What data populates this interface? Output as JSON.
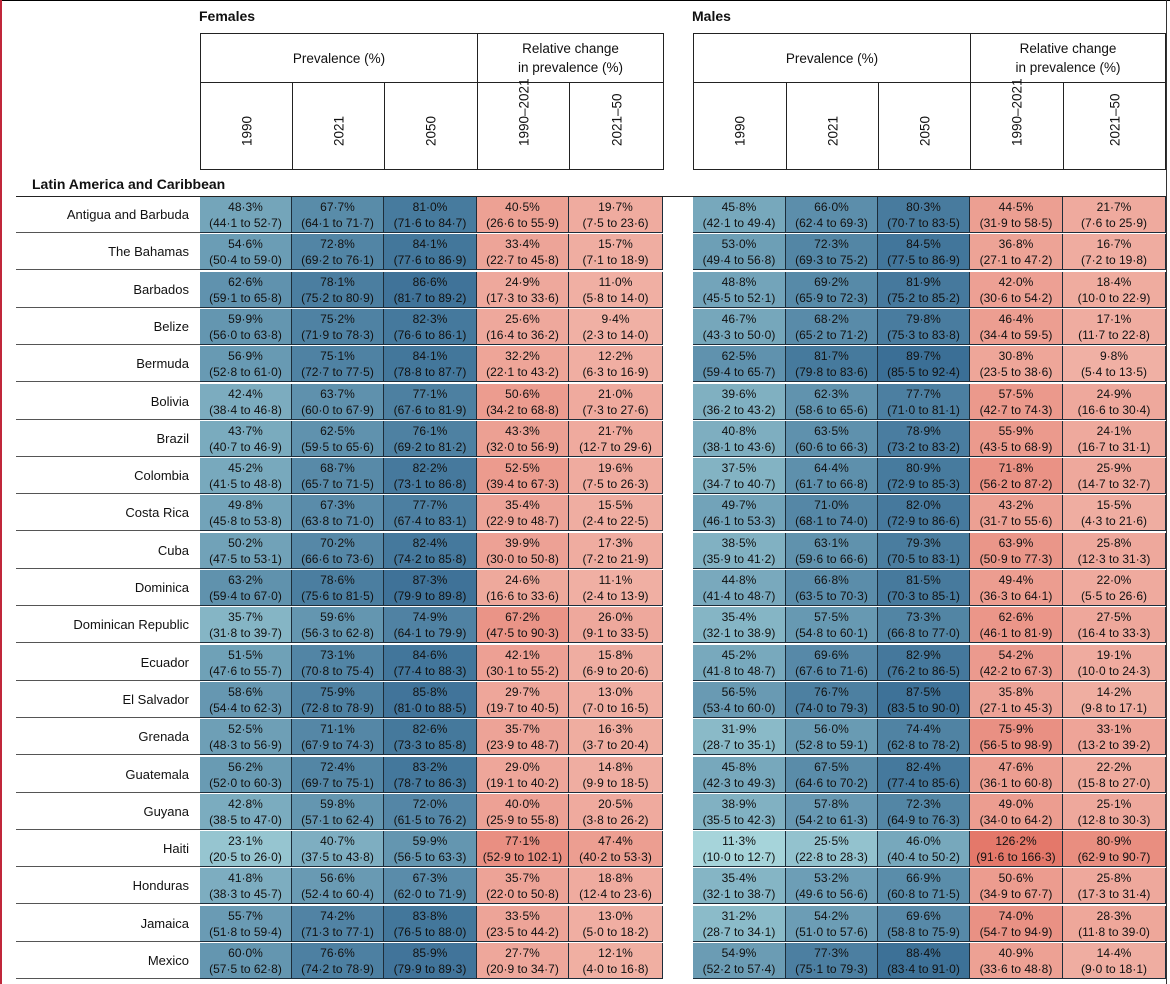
{
  "sexes": [
    "Females",
    "Males"
  ],
  "groups": {
    "prevalence": "Prevalence (%)",
    "relative_1": "Relative change",
    "relative_2": "in prevalence (%)"
  },
  "years": [
    "1990",
    "2021",
    "2050",
    "1990–2021",
    "2021–50"
  ],
  "region": "Latin America and Caribbean",
  "colors": {
    "blue_low": "#a8d6db",
    "blue_high": "#3b6f96",
    "red_low": "#f0b0a4",
    "red_high": "#e4786a"
  },
  "rows": [
    {
      "name": "Antigua and Barbuda",
      "f": [
        [
          "48·3%",
          "(44·1 to 52·7)"
        ],
        [
          "67·7%",
          "(64·1 to 71·7)"
        ],
        [
          "81·0%",
          "(71·6 to 84·7)"
        ],
        [
          "40·5%",
          "(26·6 to 55·9)"
        ],
        [
          "19·7%",
          "(7·5 to 23·6)"
        ]
      ],
      "m": [
        [
          "45·8%",
          "(42·1 to 49·4)"
        ],
        [
          "66·0%",
          "(62·4 to 69·3)"
        ],
        [
          "80·3%",
          "(70·7 to 83·5)"
        ],
        [
          "44·5%",
          "(31·9 to 58·5)"
        ],
        [
          "21·7%",
          "(7·6 to 25·9)"
        ]
      ]
    },
    {
      "name": "The Bahamas",
      "f": [
        [
          "54·6%",
          "(50·4 to 59·0)"
        ],
        [
          "72·8%",
          "(69·2 to 76·1)"
        ],
        [
          "84·1%",
          "(77·6 to 86·9)"
        ],
        [
          "33·4%",
          "(22·7 to 45·8)"
        ],
        [
          "15·7%",
          "(7·1 to 18·9)"
        ]
      ],
      "m": [
        [
          "53·0%",
          "(49·4 to 56·8)"
        ],
        [
          "72·3%",
          "(69·3 to 75·2)"
        ],
        [
          "84·5%",
          "(77·5 to 86·9)"
        ],
        [
          "36·8%",
          "(27·1 to 47·2)"
        ],
        [
          "16·7%",
          "(7·2 to 19·8)"
        ]
      ]
    },
    {
      "name": "Barbados",
      "f": [
        [
          "62·6%",
          "(59·1 to 65·8)"
        ],
        [
          "78·1%",
          "(75·2 to 80·9)"
        ],
        [
          "86·6%",
          "(81·7 to 89·2)"
        ],
        [
          "24·9%",
          "(17·3 to 33·6)"
        ],
        [
          "11·0%",
          "(5·8 to 14·0)"
        ]
      ],
      "m": [
        [
          "48·8%",
          "(45·5 to 52·1)"
        ],
        [
          "69·2%",
          "(65·9 to 72·3)"
        ],
        [
          "81·9%",
          "(75·2 to 85·2)"
        ],
        [
          "42·0%",
          "(30·6 to 54·2)"
        ],
        [
          "18·4%",
          "(10·0 to 22·9)"
        ]
      ]
    },
    {
      "name": "Belize",
      "f": [
        [
          "59·9%",
          "(56·0 to 63·8)"
        ],
        [
          "75·2%",
          "(71·9 to 78·3)"
        ],
        [
          "82·3%",
          "(76·6 to 86·1)"
        ],
        [
          "25·6%",
          "(16·4 to 36·2)"
        ],
        [
          "9·4%",
          "(2·3 to 14·0)"
        ]
      ],
      "m": [
        [
          "46·7%",
          "(43·3 to 50·0)"
        ],
        [
          "68·2%",
          "(65·2 to 71·2)"
        ],
        [
          "79·8%",
          "(75·3 to 83·8)"
        ],
        [
          "46·4%",
          "(34·4 to 59·5)"
        ],
        [
          "17·1%",
          "(11·7 to 22·8)"
        ]
      ]
    },
    {
      "name": "Bermuda",
      "f": [
        [
          "56·9%",
          "(52·8 to 61·0)"
        ],
        [
          "75·1%",
          "(72·7 to 77·5)"
        ],
        [
          "84·1%",
          "(78·8 to 87·7)"
        ],
        [
          "32·2%",
          "(22·1 to 43·2)"
        ],
        [
          "12·2%",
          "(6·3 to 16·9)"
        ]
      ],
      "m": [
        [
          "62·5%",
          "(59·4 to 65·7)"
        ],
        [
          "81·7%",
          "(79·8 to 83·6)"
        ],
        [
          "89·7%",
          "(85·5 to 92·4)"
        ],
        [
          "30·8%",
          "(23·5 to 38·6)"
        ],
        [
          "9·8%",
          "(5·4 to 13·5)"
        ]
      ]
    },
    {
      "name": "Bolivia",
      "f": [
        [
          "42·4%",
          "(38·4 to 46·8)"
        ],
        [
          "63·7%",
          "(60·0 to 67·9)"
        ],
        [
          "77·1%",
          "(67·6 to 81·9)"
        ],
        [
          "50·6%",
          "(34·2 to 68·8)"
        ],
        [
          "21·0%",
          "(7·3 to 27·6)"
        ]
      ],
      "m": [
        [
          "39·6%",
          "(36·2 to 43·2)"
        ],
        [
          "62·3%",
          "(58·6 to 65·6)"
        ],
        [
          "77·7%",
          "(71·0 to 81·1)"
        ],
        [
          "57·5%",
          "(42·7 to 74·3)"
        ],
        [
          "24·9%",
          "(16·6 to 30·4)"
        ]
      ]
    },
    {
      "name": "Brazil",
      "f": [
        [
          "43·7%",
          "(40·7 to 46·9)"
        ],
        [
          "62·5%",
          "(59·5 to 65·6)"
        ],
        [
          "76·1%",
          "(69·2 to 81·2)"
        ],
        [
          "43·3%",
          "(32·0 to 56·9)"
        ],
        [
          "21·7%",
          "(12·7 to 29·6)"
        ]
      ],
      "m": [
        [
          "40·8%",
          "(38·1 to 43·6)"
        ],
        [
          "63·5%",
          "(60·6 to 66·3)"
        ],
        [
          "78·9%",
          "(73·2 to 83·2)"
        ],
        [
          "55·9%",
          "(43·5 to 68·9)"
        ],
        [
          "24·1%",
          "(16·7 to 31·1)"
        ]
      ]
    },
    {
      "name": "Colombia",
      "f": [
        [
          "45·2%",
          "(41·5 to 48·8)"
        ],
        [
          "68·7%",
          "(65·7 to 71·5)"
        ],
        [
          "82·2%",
          "(73·1 to 86·8)"
        ],
        [
          "52·5%",
          "(39·4 to 67·3)"
        ],
        [
          "19·6%",
          "(7·5 to 26·3)"
        ]
      ],
      "m": [
        [
          "37·5%",
          "(34·7 to 40·7)"
        ],
        [
          "64·4%",
          "(61·7 to 66·8)"
        ],
        [
          "80·9%",
          "(72·9 to 85·3)"
        ],
        [
          "71·8%",
          "(56·2 to 87·2)"
        ],
        [
          "25·9%",
          "(14·7 to 32·7)"
        ]
      ]
    },
    {
      "name": "Costa Rica",
      "f": [
        [
          "49·8%",
          "(45·8 to 53·8)"
        ],
        [
          "67·3%",
          "(63·8 to 71·0)"
        ],
        [
          "77·7%",
          "(67·4 to 83·1)"
        ],
        [
          "35·4%",
          "(22·9 to 48·7)"
        ],
        [
          "15·5%",
          "(2·4 to 22·5)"
        ]
      ],
      "m": [
        [
          "49·7%",
          "(46·1 to 53·3)"
        ],
        [
          "71·0%",
          "(68·1 to 74·0)"
        ],
        [
          "82·0%",
          "(72·9 to 86·6)"
        ],
        [
          "43·2%",
          "(31·7 to 55·6)"
        ],
        [
          "15·5%",
          "(4·3 to 21·6)"
        ]
      ]
    },
    {
      "name": "Cuba",
      "f": [
        [
          "50·2%",
          "(47·5 to 53·1)"
        ],
        [
          "70·2%",
          "(66·6 to 73·6)"
        ],
        [
          "82·4%",
          "(74·2 to 85·8)"
        ],
        [
          "39·9%",
          "(30·0 to 50·8)"
        ],
        [
          "17·3%",
          "(7·2 to 21·9)"
        ]
      ],
      "m": [
        [
          "38·5%",
          "(35·9 to 41·2)"
        ],
        [
          "63·1%",
          "(59·6 to 66·6)"
        ],
        [
          "79·3%",
          "(70·5 to 83·1)"
        ],
        [
          "63·9%",
          "(50·9 to 77·3)"
        ],
        [
          "25·8%",
          "(12·3 to 31·3)"
        ]
      ]
    },
    {
      "name": "Dominica",
      "f": [
        [
          "63·2%",
          "(59·4 to 67·0)"
        ],
        [
          "78·6%",
          "(75·6 to 81·5)"
        ],
        [
          "87·3%",
          "(79·9 to 89·8)"
        ],
        [
          "24·6%",
          "(16·6 to 33·6)"
        ],
        [
          "11·1%",
          "(2·4 to 13·9)"
        ]
      ],
      "m": [
        [
          "44·8%",
          "(41·4 to 48·7)"
        ],
        [
          "66·8%",
          "(63·5 to 70·3)"
        ],
        [
          "81·5%",
          "(70·3 to 85·1)"
        ],
        [
          "49·4%",
          "(36·3 to 64·1)"
        ],
        [
          "22·0%",
          "(5·5 to 26·6)"
        ]
      ]
    },
    {
      "name": "Dominican Republic",
      "f": [
        [
          "35·7%",
          "(31·8 to 39·7)"
        ],
        [
          "59·6%",
          "(56·3 to 62·8)"
        ],
        [
          "74·9%",
          "(64·1 to 79·9)"
        ],
        [
          "67·2%",
          "(47·5 to 90·3)"
        ],
        [
          "26·0%",
          "(9·1 to 33·5)"
        ]
      ],
      "m": [
        [
          "35·4%",
          "(32·1 to 38·9)"
        ],
        [
          "57·5%",
          "(54·8 to 60·1)"
        ],
        [
          "73·3%",
          "(66·8 to 77·0)"
        ],
        [
          "62·6%",
          "(46·1 to 81·9)"
        ],
        [
          "27·5%",
          "(16·4 to 33·3)"
        ]
      ]
    },
    {
      "name": "Ecuador",
      "f": [
        [
          "51·5%",
          "(47·6 to 55·7)"
        ],
        [
          "73·1%",
          "(70·8 to 75·4)"
        ],
        [
          "84·6%",
          "(77·4 to 88·3)"
        ],
        [
          "42·1%",
          "(30·1 to 55·2)"
        ],
        [
          "15·8%",
          "(6·9 to 20·6)"
        ]
      ],
      "m": [
        [
          "45·2%",
          "(41·8 to 48·7)"
        ],
        [
          "69·6%",
          "(67·6 to 71·6)"
        ],
        [
          "82·9%",
          "(76·2 to 86·5)"
        ],
        [
          "54·2%",
          "(42·2 to 67·3)"
        ],
        [
          "19·1%",
          "(10·0 to 24·3)"
        ]
      ]
    },
    {
      "name": "El Salvador",
      "f": [
        [
          "58·6%",
          "(54·4 to 62·3)"
        ],
        [
          "75·9%",
          "(72·8 to 78·9)"
        ],
        [
          "85·8%",
          "(81·0 to 88·5)"
        ],
        [
          "29·7%",
          "(19·7 to 40·5)"
        ],
        [
          "13·0%",
          "(7·0 to 16·5)"
        ]
      ],
      "m": [
        [
          "56·5%",
          "(53·4 to 60·0)"
        ],
        [
          "76·7%",
          "(74·0 to 79·3)"
        ],
        [
          "87·5%",
          "(83·5 to 90·0)"
        ],
        [
          "35·8%",
          "(27·1 to 45·3)"
        ],
        [
          "14·2%",
          "(9·8 to 17·1)"
        ]
      ]
    },
    {
      "name": "Grenada",
      "f": [
        [
          "52·5%",
          "(48·3 to 56·9)"
        ],
        [
          "71·1%",
          "(67·9 to 74·3)"
        ],
        [
          "82·6%",
          "(73·3 to 85·8)"
        ],
        [
          "35·7%",
          "(23·9 to 48·7)"
        ],
        [
          "16·3%",
          "(3·7 to 20·4)"
        ]
      ],
      "m": [
        [
          "31·9%",
          "(28·7 to 35·1)"
        ],
        [
          "56·0%",
          "(52·8 to 59·1)"
        ],
        [
          "74·4%",
          "(62·8 to 78·2)"
        ],
        [
          "75·9%",
          "(56·5 to 98·9)"
        ],
        [
          "33·1%",
          "(13·2 to 39·2)"
        ]
      ]
    },
    {
      "name": "Guatemala",
      "f": [
        [
          "56·2%",
          "(52·0 to 60·3)"
        ],
        [
          "72·4%",
          "(69·7 to 75·1)"
        ],
        [
          "83·2%",
          "(78·7 to 86·3)"
        ],
        [
          "29·0%",
          "(19·1 to 40·2)"
        ],
        [
          "14·8%",
          "(9·9 to 18·5)"
        ]
      ],
      "m": [
        [
          "45·8%",
          "(42·3 to 49·3)"
        ],
        [
          "67·5%",
          "(64·6 to 70·2)"
        ],
        [
          "82·4%",
          "(77·4 to 85·6)"
        ],
        [
          "47·6%",
          "(36·1 to 60·8)"
        ],
        [
          "22·2%",
          "(15·8 to 27·0)"
        ]
      ]
    },
    {
      "name": "Guyana",
      "f": [
        [
          "42·8%",
          "(38·5 to 47·0)"
        ],
        [
          "59·8%",
          "(57·1 to 62·4)"
        ],
        [
          "72·0%",
          "(61·5 to 76·2)"
        ],
        [
          "40·0%",
          "(25·9 to 55·8)"
        ],
        [
          "20·5%",
          "(3·8 to 26·2)"
        ]
      ],
      "m": [
        [
          "38·9%",
          "(35·5 to 42·3)"
        ],
        [
          "57·8%",
          "(54·2 to 61·3)"
        ],
        [
          "72·3%",
          "(64·9 to 76·3)"
        ],
        [
          "49·0%",
          "(34·0 to 64·2)"
        ],
        [
          "25·1%",
          "(12·8 to 30·3)"
        ]
      ]
    },
    {
      "name": "Haiti",
      "f": [
        [
          "23·1%",
          "(20·5 to 26·0)"
        ],
        [
          "40·7%",
          "(37·5 to 43·8)"
        ],
        [
          "59·9%",
          "(56·5 to 63·3)"
        ],
        [
          "77·1%",
          "(52·9 to 102·1)"
        ],
        [
          "47·4%",
          "(40·2 to 53·3)"
        ]
      ],
      "m": [
        [
          "11·3%",
          "(10·0 to 12·7)"
        ],
        [
          "25·5%",
          "(22·8 to 28·3)"
        ],
        [
          "46·0%",
          "(40·4 to 50·2)"
        ],
        [
          "126·2%",
          "(91·6 to 166·3)"
        ],
        [
          "80·9%",
          "(62·9 to 90·7)"
        ]
      ]
    },
    {
      "name": "Honduras",
      "f": [
        [
          "41·8%",
          "(38·3 to 45·7)"
        ],
        [
          "56·6%",
          "(52·4 to 60·4)"
        ],
        [
          "67·3%",
          "(62·0 to 71·9)"
        ],
        [
          "35·7%",
          "(22·0 to 50·8)"
        ],
        [
          "18·8%",
          "(12·4 to 23·6)"
        ]
      ],
      "m": [
        [
          "35·4%",
          "(32·1 to 38·7)"
        ],
        [
          "53·2%",
          "(49·6 to 56·6)"
        ],
        [
          "66·9%",
          "(60·8 to 71·5)"
        ],
        [
          "50·6%",
          "(34·9 to 67·7)"
        ],
        [
          "25·8%",
          "(17·3 to 31·4)"
        ]
      ]
    },
    {
      "name": "Jamaica",
      "f": [
        [
          "55·7%",
          "(51·8 to 59·4)"
        ],
        [
          "74·2%",
          "(71·3 to 77·1)"
        ],
        [
          "83·8%",
          "(76·5 to 88·0)"
        ],
        [
          "33·5%",
          "(23·5 to 44·2)"
        ],
        [
          "13·0%",
          "(5·0 to 18·2)"
        ]
      ],
      "m": [
        [
          "31·2%",
          "(28·7 to 34·1)"
        ],
        [
          "54·2%",
          "(51·0 to 57·6)"
        ],
        [
          "69·6%",
          "(58·8 to 75·9)"
        ],
        [
          "74·0%",
          "(54·7 to 94·9)"
        ],
        [
          "28·3%",
          "(11·8 to 39·0)"
        ]
      ]
    },
    {
      "name": "Mexico",
      "f": [
        [
          "60·0%",
          "(57·5 to 62·8)"
        ],
        [
          "76·6%",
          "(74·2 to 78·9)"
        ],
        [
          "85·9%",
          "(79·9 to 89·3)"
        ],
        [
          "27·7%",
          "(20·9 to 34·7)"
        ],
        [
          "12·1%",
          "(4·0 to 16·8)"
        ]
      ],
      "m": [
        [
          "54·9%",
          "(52·2 to 57·4)"
        ],
        [
          "77·3%",
          "(75·1 to 79·3)"
        ],
        [
          "88·4%",
          "(83·4 to 91·0)"
        ],
        [
          "40·9%",
          "(33·6 to 48·8)"
        ],
        [
          "14·4%",
          "(9·0 to 18·1)"
        ]
      ]
    }
  ]
}
